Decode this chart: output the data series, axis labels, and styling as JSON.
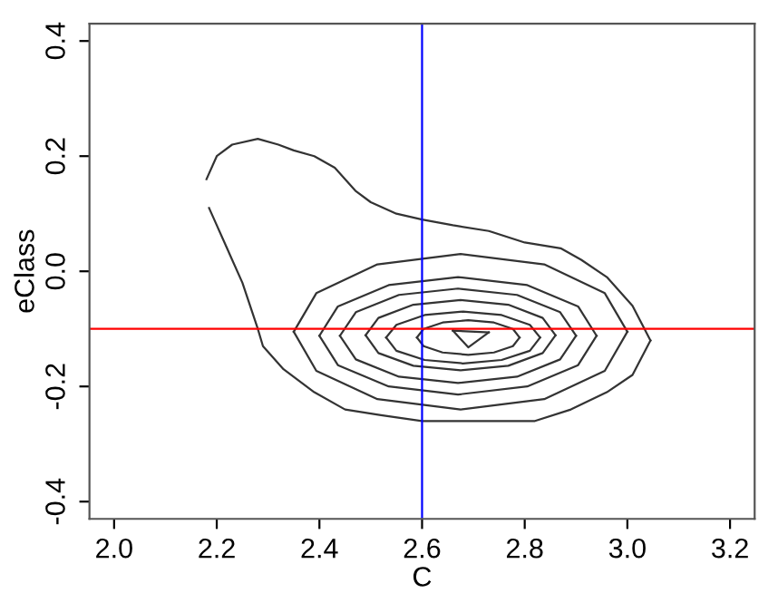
{
  "chart_data": {
    "type": "line",
    "xlabel": "C",
    "ylabel": "eClass",
    "xlim": [
      1.952,
      3.248
    ],
    "ylim": [
      -0.43,
      0.43
    ],
    "xticks": [
      {
        "value": 2.0,
        "label": "2.0"
      },
      {
        "value": 2.2,
        "label": "2.2"
      },
      {
        "value": 2.4,
        "label": "2.4"
      },
      {
        "value": 2.6,
        "label": "2.6"
      },
      {
        "value": 2.8,
        "label": "2.8"
      },
      {
        "value": 3.0,
        "label": "3.0"
      },
      {
        "value": 3.2,
        "label": "3.2"
      }
    ],
    "yticks": [
      {
        "value": -0.4,
        "label": "-0.4"
      },
      {
        "value": -0.2,
        "label": "-0.2"
      },
      {
        "value": 0.0,
        "label": "0.0"
      },
      {
        "value": 0.2,
        "label": "0.2"
      },
      {
        "value": 0.4,
        "label": "0.4"
      }
    ],
    "grid": false,
    "legend": false,
    "marker": "none",
    "line_style": "solid",
    "ref_lines": [
      {
        "axis": "x",
        "value": 2.6,
        "color": "#0000ff",
        "line_style": "solid"
      },
      {
        "axis": "y",
        "value": -0.1,
        "color": "#ff0000",
        "line_style": "solid"
      }
    ],
    "series": [
      {
        "color": "#333333",
        "x": [
          2.18,
          2.2,
          2.23,
          2.28,
          2.32,
          2.35,
          2.39,
          2.43,
          2.47,
          2.5,
          2.55,
          2.6,
          2.66,
          2.73,
          2.8,
          2.87,
          2.91,
          2.96,
          3.01,
          3.045
        ],
        "values": [
          0.16,
          0.2,
          0.22,
          0.23,
          0.22,
          0.21,
          0.2,
          0.18,
          0.14,
          0.12,
          0.1,
          0.09,
          0.08,
          0.07,
          0.05,
          0.04,
          0.02,
          -0.01,
          -0.06,
          -0.12
        ]
      },
      {
        "color": "#333333",
        "x": [
          2.185,
          2.2,
          2.22,
          2.25,
          2.28,
          2.29,
          2.33,
          2.39,
          2.45,
          2.52,
          2.6,
          2.66,
          2.73,
          2.82,
          2.89,
          2.96,
          3.01,
          3.045
        ],
        "values": [
          0.11,
          0.08,
          0.04,
          -0.02,
          -0.1,
          -0.13,
          -0.17,
          -0.21,
          -0.24,
          -0.25,
          -0.26,
          -0.26,
          -0.26,
          -0.26,
          -0.24,
          -0.21,
          -0.18,
          -0.12
        ]
      },
      {
        "color": "#333333",
        "x": [
          2.35,
          2.394,
          2.513,
          2.675,
          2.838,
          2.956,
          3.0
        ],
        "values": [
          -0.105,
          -0.038,
          0.012,
          0.03,
          0.012,
          -0.038,
          -0.105
        ]
      },
      {
        "color": "#333333",
        "x": [
          2.35,
          2.394,
          2.513,
          2.675,
          2.838,
          2.956,
          3.0
        ],
        "values": [
          -0.105,
          -0.173,
          -0.222,
          -0.24,
          -0.222,
          -0.173,
          -0.105
        ]
      },
      {
        "color": "#333333",
        "x": [
          2.4,
          2.436,
          2.535,
          2.67,
          2.805,
          2.904,
          2.94
        ],
        "values": [
          -0.112,
          -0.061,
          -0.024,
          -0.01,
          -0.024,
          -0.061,
          -0.112
        ]
      },
      {
        "color": "#333333",
        "x": [
          2.4,
          2.436,
          2.535,
          2.67,
          2.805,
          2.904,
          2.94
        ],
        "values": [
          -0.112,
          -0.163,
          -0.2,
          -0.214,
          -0.2,
          -0.163,
          -0.112
        ]
      },
      {
        "color": "#333333",
        "x": [
          2.44,
          2.471,
          2.555,
          2.67,
          2.785,
          2.869,
          2.9
        ],
        "values": [
          -0.112,
          -0.071,
          -0.041,
          -0.03,
          -0.041,
          -0.071,
          -0.112
        ]
      },
      {
        "color": "#333333",
        "x": [
          2.44,
          2.471,
          2.555,
          2.67,
          2.785,
          2.869,
          2.9
        ],
        "values": [
          -0.112,
          -0.153,
          -0.183,
          -0.194,
          -0.183,
          -0.153,
          -0.112
        ]
      },
      {
        "color": "#333333",
        "x": [
          2.49,
          2.515,
          2.583,
          2.675,
          2.768,
          2.835,
          2.86
        ],
        "values": [
          -0.111,
          -0.081,
          -0.058,
          -0.05,
          -0.058,
          -0.081,
          -0.111
        ]
      },
      {
        "color": "#333333",
        "x": [
          2.49,
          2.515,
          2.583,
          2.675,
          2.768,
          2.835,
          2.86
        ],
        "values": [
          -0.111,
          -0.142,
          -0.164,
          -0.172,
          -0.164,
          -0.142,
          -0.111
        ]
      },
      {
        "color": "#333333",
        "x": [
          2.53,
          2.55,
          2.605,
          2.68,
          2.755,
          2.81,
          2.83
        ],
        "values": [
          -0.115,
          -0.093,
          -0.076,
          -0.07,
          -0.076,
          -0.093,
          -0.115
        ]
      },
      {
        "color": "#333333",
        "x": [
          2.53,
          2.55,
          2.605,
          2.68,
          2.755,
          2.81,
          2.83
        ],
        "values": [
          -0.115,
          -0.138,
          -0.154,
          -0.16,
          -0.154,
          -0.138,
          -0.115
        ]
      },
      {
        "color": "#333333",
        "x": [
          2.59,
          2.603,
          2.64,
          2.69,
          2.74,
          2.777,
          2.79
        ],
        "values": [
          -0.115,
          -0.1,
          -0.089,
          -0.085,
          -0.089,
          -0.1,
          -0.115
        ]
      },
      {
        "color": "#333333",
        "x": [
          2.59,
          2.603,
          2.64,
          2.69,
          2.74,
          2.777,
          2.79
        ],
        "values": [
          -0.115,
          -0.13,
          -0.141,
          -0.145,
          -0.141,
          -0.13,
          -0.115
        ]
      },
      {
        "color": "#333333",
        "x": [
          2.66,
          2.73
        ],
        "values": [
          -0.103,
          -0.106
        ]
      },
      {
        "color": "#333333",
        "x": [
          2.66,
          2.69,
          2.73
        ],
        "values": [
          -0.103,
          -0.132,
          -0.106
        ]
      }
    ]
  }
}
